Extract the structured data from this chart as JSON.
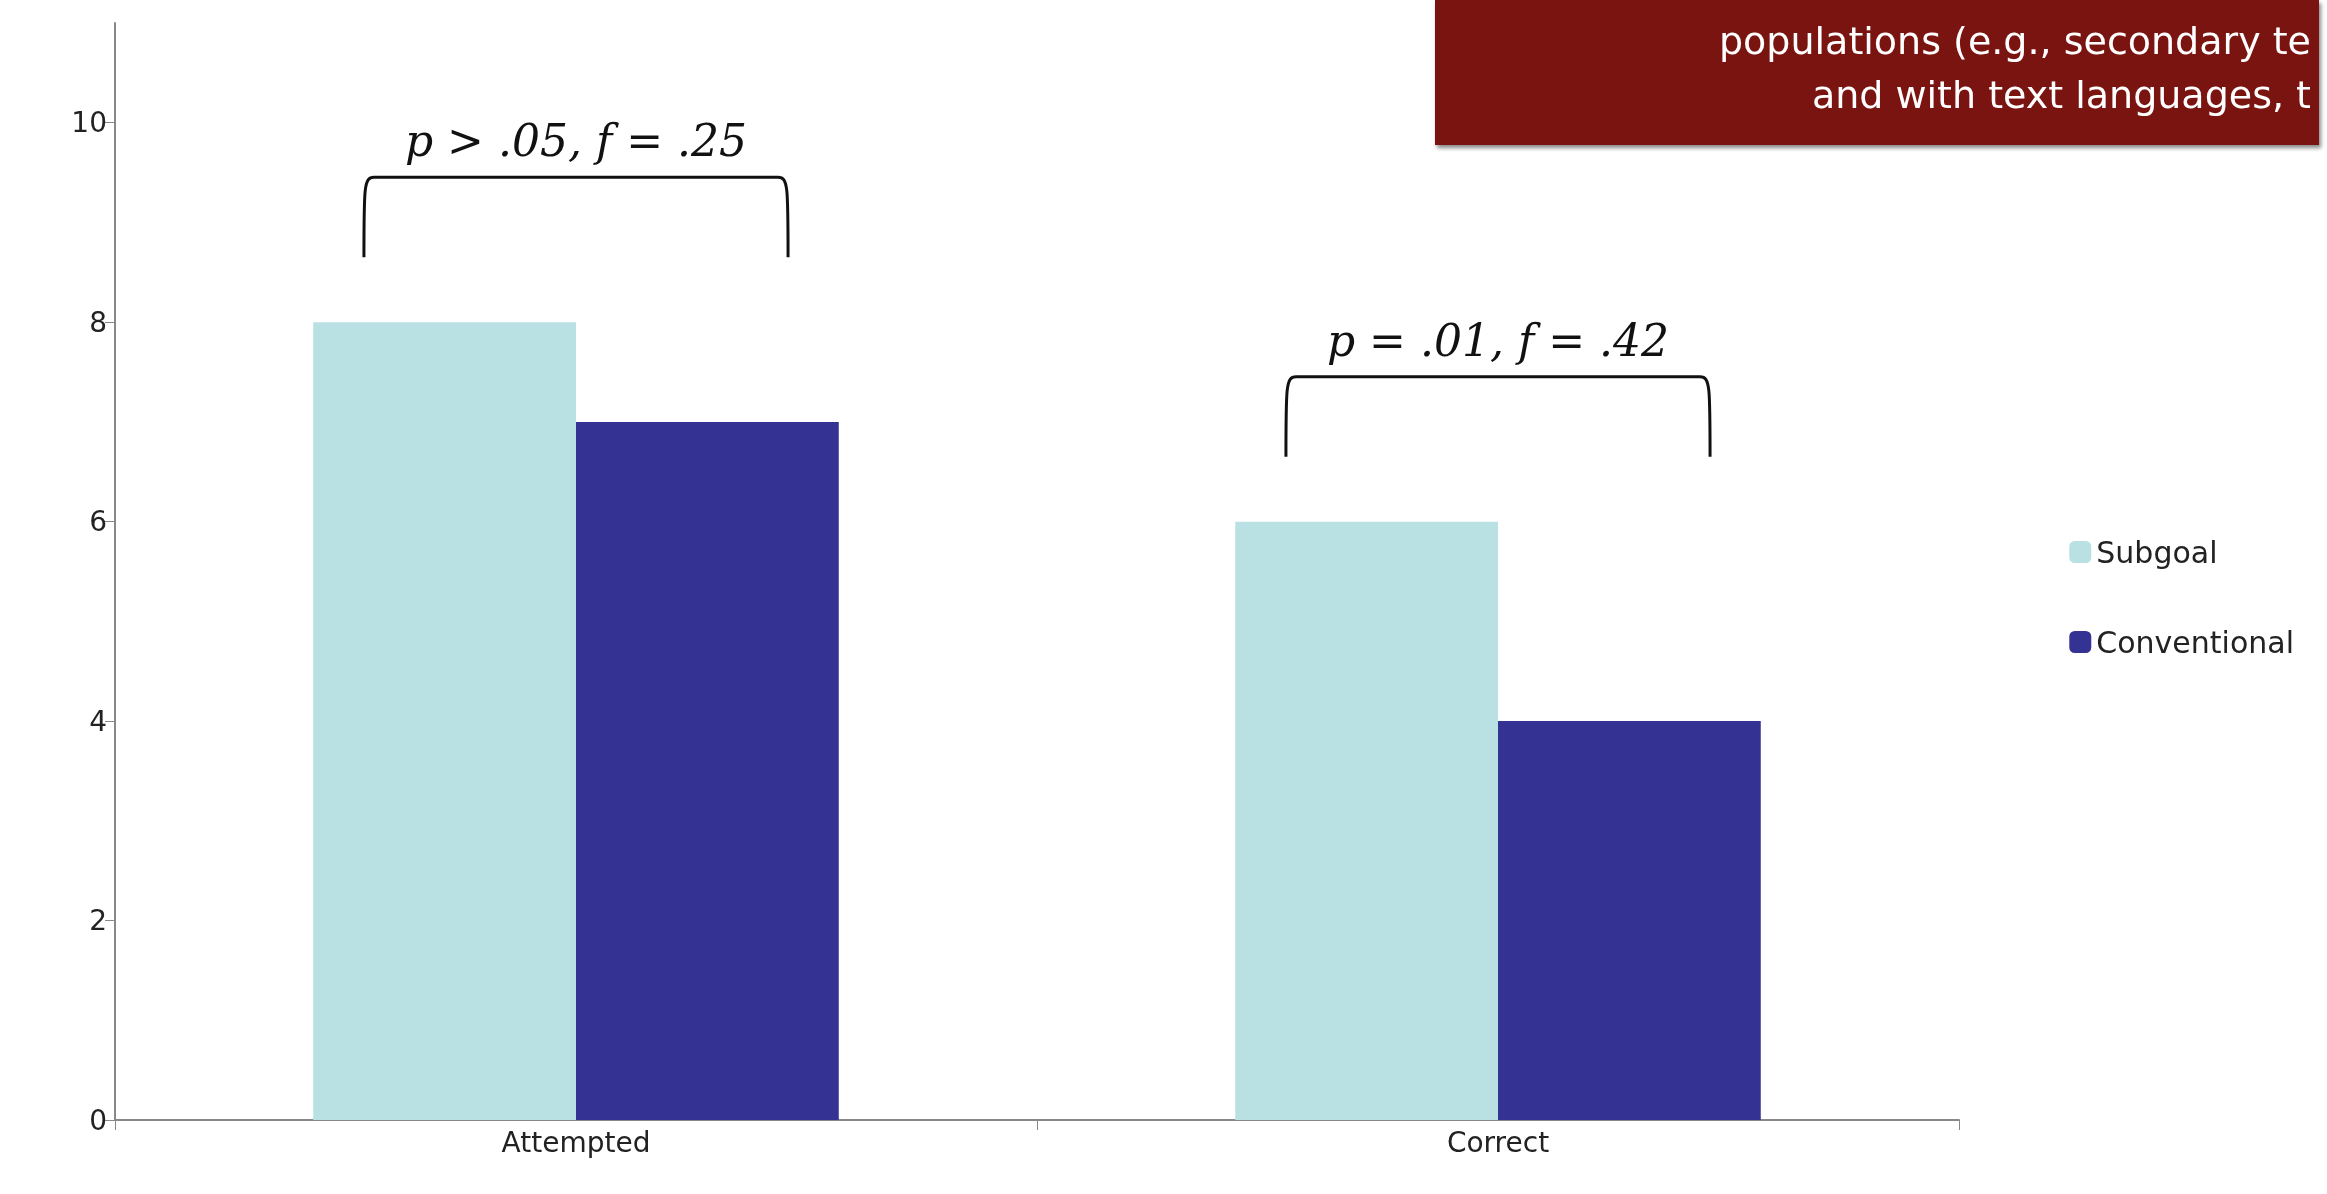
{
  "chart_data": {
    "type": "bar",
    "categories": [
      "Attempted",
      "Correct"
    ],
    "series": [
      {
        "name": "Subgoal",
        "color": "#b9e0e3",
        "values": [
          8,
          6
        ]
      },
      {
        "name": "Conventional",
        "color": "#343394",
        "values": [
          7,
          4
        ]
      }
    ],
    "ylim": [
      0,
      11
    ],
    "yticks": [
      0,
      2,
      4,
      6,
      8,
      10
    ],
    "grid": false,
    "legend": "right",
    "annotations": [
      "p > .05, f = .25",
      "p = .01, f = .42",
      "populations (e.g., secondary te\nand with text languages, t"
    ]
  }
}
